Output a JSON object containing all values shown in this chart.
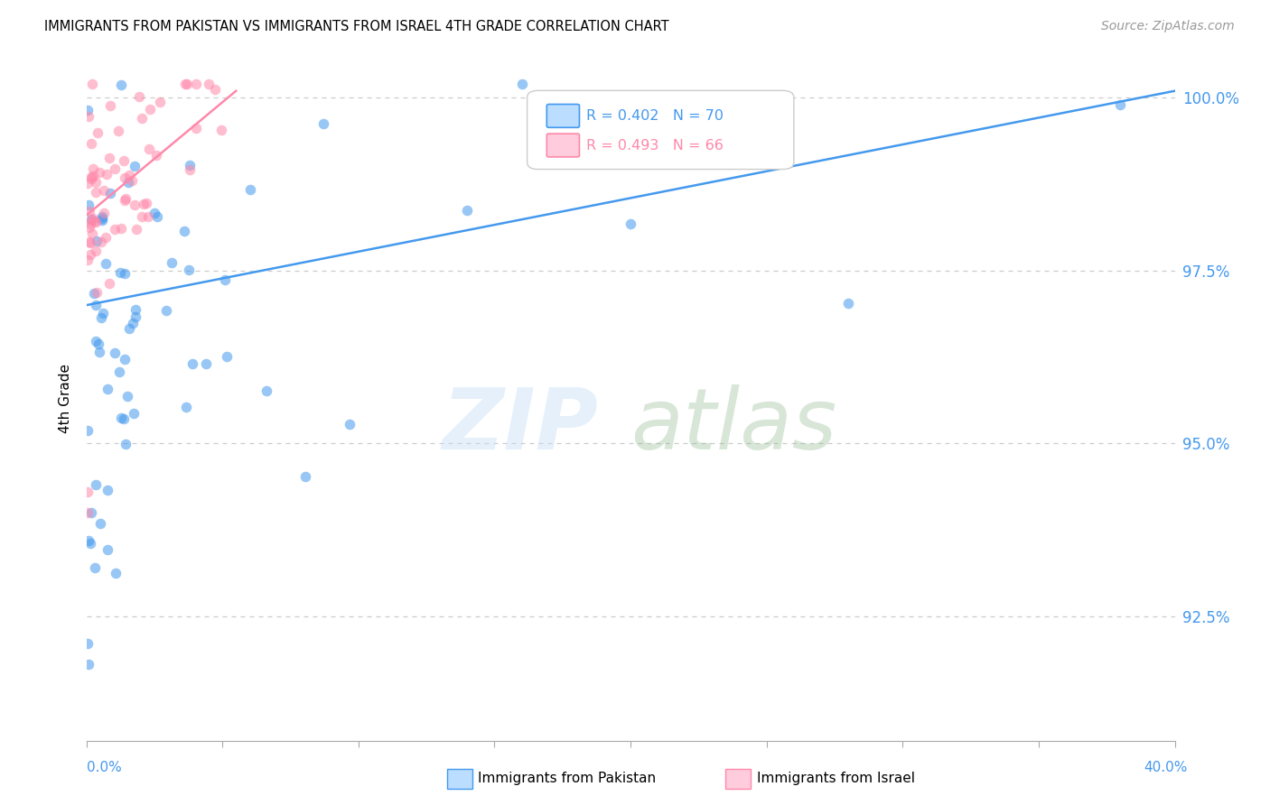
{
  "title": "IMMIGRANTS FROM PAKISTAN VS IMMIGRANTS FROM ISRAEL 4TH GRADE CORRELATION CHART",
  "source": "Source: ZipAtlas.com",
  "ylabel": "4th Grade",
  "ytick_labels": [
    "100.0%",
    "97.5%",
    "95.0%",
    "92.5%"
  ],
  "ytick_values": [
    1.0,
    0.975,
    0.95,
    0.925
  ],
  "xlim_min": 0.0,
  "xlim_max": 40.0,
  "ylim_min": 0.907,
  "ylim_max": 1.006,
  "blue_color": "#4499ee",
  "pink_color": "#ff88aa",
  "legend_blue_fill": "#bbddff",
  "legend_pink_fill": "#ffccdd",
  "R_blue": 0.402,
  "N_blue": 70,
  "R_pink": 0.493,
  "N_pink": 66,
  "legend_label_blue": "Immigrants from Pakistan",
  "legend_label_pink": "Immigrants from Israel",
  "grid_color": "#cccccc",
  "axis_color": "#aaaaaa",
  "right_label_color": "#4499ee",
  "bottom_label_color": "#4499ee",
  "blue_trend_x0": 0.0,
  "blue_trend_x1": 40.0,
  "blue_trend_y0": 0.97,
  "blue_trend_y1": 1.001,
  "pink_trend_x0": 0.0,
  "pink_trend_x1": 5.5,
  "pink_trend_y0": 0.983,
  "pink_trend_y1": 1.001
}
